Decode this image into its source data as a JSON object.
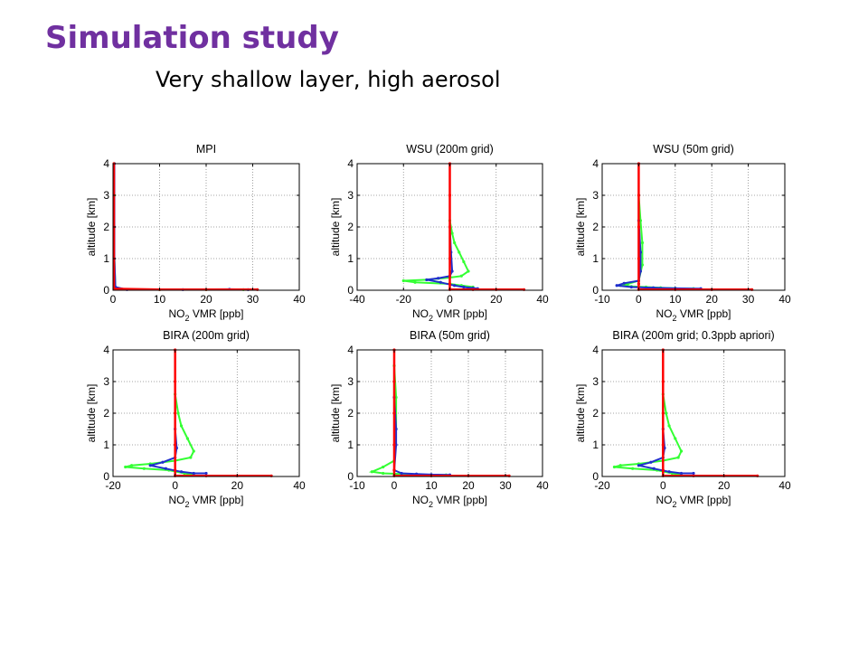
{
  "slide": {
    "title": "Simulation study",
    "subtitle": "Very shallow layer, high aerosol"
  },
  "colors": {
    "title": "#7030a0",
    "red": "#ff0000",
    "green": "#33ff33",
    "blue": "#1f2fcc",
    "grid": "#888888"
  },
  "chart_data": [
    {
      "type": "line",
      "title": "MPI",
      "xlabel": "NO2 VMR [ppb]",
      "ylabel": "altitude [km]",
      "xlim": [
        0,
        40
      ],
      "ylim": [
        0,
        4
      ],
      "xticks": [
        0,
        10,
        20,
        30,
        40
      ],
      "yticks": [
        0,
        1,
        2,
        3,
        4
      ],
      "grid": true,
      "series": [
        {
          "color": "green",
          "x": [
            0.3,
            0.3,
            0.3,
            0.3,
            0.5,
            2,
            10,
            20,
            28
          ],
          "y": [
            4,
            3,
            2,
            1,
            0.1,
            0.03,
            0.02,
            0.02,
            0.02
          ]
        },
        {
          "color": "blue",
          "x": [
            0.3,
            0.3,
            0.3,
            0.5,
            3,
            15,
            25,
            29
          ],
          "y": [
            4,
            2,
            1,
            0.1,
            0.02,
            0.02,
            0.03,
            0.02
          ]
        },
        {
          "color": "red",
          "x": [
            0.2,
            0.2,
            0.2,
            0.2,
            0.2,
            10,
            20,
            31
          ],
          "y": [
            4,
            3,
            2,
            1,
            0.05,
            0.02,
            0.02,
            0.02
          ]
        }
      ]
    },
    {
      "type": "line",
      "title": "WSU (200m grid)",
      "xlabel": "NO2 VMR [ppb]",
      "ylabel": "altitude [km]",
      "xlim": [
        -40,
        40
      ],
      "ylim": [
        0,
        4
      ],
      "xticks": [
        -40,
        -20,
        0,
        20,
        40
      ],
      "yticks": [
        0,
        1,
        2,
        3,
        4
      ],
      "grid": true,
      "series": [
        {
          "color": "green",
          "x": [
            0,
            1,
            2,
            4,
            6,
            8,
            5,
            0,
            -10,
            -20,
            -15,
            0,
            5,
            10,
            8
          ],
          "y": [
            2.2,
            1.8,
            1.5,
            1.2,
            0.9,
            0.6,
            0.45,
            0.4,
            0.33,
            0.3,
            0.25,
            0.2,
            0.15,
            0.1,
            0.05
          ]
        },
        {
          "color": "blue",
          "x": [
            0,
            0.5,
            1,
            0,
            -5,
            -10,
            -4,
            2,
            6,
            10,
            12
          ],
          "y": [
            2,
            1.2,
            0.6,
            0.45,
            0.38,
            0.33,
            0.25,
            0.15,
            0.1,
            0.07,
            0.05
          ]
        },
        {
          "color": "red",
          "x": [
            0,
            0,
            0,
            0,
            0,
            0,
            10,
            20,
            32
          ],
          "y": [
            4,
            3,
            2,
            1,
            0.2,
            0.02,
            0.02,
            0.02,
            0.02
          ]
        }
      ]
    },
    {
      "type": "line",
      "title": "WSU (50m grid)",
      "xlabel": "NO2 VMR [ppb]",
      "ylabel": "altitude [km]",
      "xlim": [
        -10,
        40
      ],
      "ylim": [
        0,
        4
      ],
      "xticks": [
        -10,
        0,
        10,
        20,
        30,
        40
      ],
      "yticks": [
        0,
        1,
        2,
        3,
        4
      ],
      "grid": true,
      "series": [
        {
          "color": "green",
          "x": [
            0,
            0.5,
            1,
            1,
            0,
            -3,
            -5,
            -2,
            2,
            6,
            10,
            15
          ],
          "y": [
            3,
            2.2,
            1.5,
            0.8,
            0.3,
            0.2,
            0.15,
            0.12,
            0.1,
            0.08,
            0.06,
            0.05
          ]
        },
        {
          "color": "blue",
          "x": [
            0,
            0.5,
            0.5,
            0,
            -4,
            -6,
            -2,
            4,
            10,
            17
          ],
          "y": [
            2.2,
            1.2,
            0.6,
            0.3,
            0.22,
            0.15,
            0.1,
            0.08,
            0.06,
            0.05
          ]
        },
        {
          "color": "red",
          "x": [
            0,
            0,
            0,
            0,
            0,
            0,
            10,
            20,
            31
          ],
          "y": [
            4,
            3,
            2,
            1,
            0.2,
            0.02,
            0.02,
            0.02,
            0.02
          ]
        }
      ]
    },
    {
      "type": "line",
      "title": "BIRA (200m grid)",
      "xlabel": "NO2 VMR [ppb]",
      "ylabel": "altitude [km]",
      "xlim": [
        -20,
        40
      ],
      "ylim": [
        0,
        4
      ],
      "xticks": [
        -20,
        0,
        20,
        40
      ],
      "yticks": [
        0,
        1,
        2,
        3,
        4
      ],
      "grid": true,
      "series": [
        {
          "color": "green",
          "x": [
            0,
            1,
            2,
            4,
            6,
            5,
            0,
            -8,
            -14,
            -16,
            -10,
            -2,
            3,
            6
          ],
          "y": [
            2.6,
            2,
            1.6,
            1.2,
            0.8,
            0.6,
            0.5,
            0.4,
            0.35,
            0.3,
            0.25,
            0.2,
            0.1,
            0.05
          ]
        },
        {
          "color": "blue",
          "x": [
            0,
            0.5,
            0,
            -4,
            -8,
            -3,
            2,
            6,
            10
          ],
          "y": [
            1.5,
            0.9,
            0.6,
            0.45,
            0.35,
            0.25,
            0.15,
            0.1,
            0.1
          ]
        },
        {
          "color": "red",
          "x": [
            0,
            0,
            0,
            0,
            0,
            0,
            10,
            20,
            31
          ],
          "y": [
            4,
            3,
            2,
            1,
            0.2,
            0.02,
            0.02,
            0.02,
            0.02
          ]
        }
      ]
    },
    {
      "type": "line",
      "title": "BIRA (50m grid)",
      "xlabel": "NO2 VMR [ppb]",
      "ylabel": "altitude [km]",
      "xlim": [
        -10,
        40
      ],
      "ylim": [
        0,
        4
      ],
      "xticks": [
        -10,
        0,
        10,
        20,
        30,
        40
      ],
      "yticks": [
        0,
        1,
        2,
        3,
        4
      ],
      "grid": true,
      "series": [
        {
          "color": "green",
          "x": [
            0,
            0.5,
            0.5,
            0,
            -3,
            -6,
            -3,
            2,
            6,
            10,
            14
          ],
          "y": [
            3.5,
            2.5,
            1.5,
            0.5,
            0.3,
            0.15,
            0.1,
            0.08,
            0.06,
            0.05,
            0.05
          ]
        },
        {
          "color": "blue",
          "x": [
            0,
            0.5,
            0.5,
            0,
            2,
            6,
            10,
            15
          ],
          "y": [
            2.5,
            1.5,
            1,
            0.2,
            0.1,
            0.08,
            0.06,
            0.05
          ]
        },
        {
          "color": "red",
          "x": [
            0,
            0,
            0,
            0,
            0,
            0,
            10,
            20,
            31
          ],
          "y": [
            4,
            3,
            2,
            1,
            0.2,
            0.02,
            0.02,
            0.02,
            0.02
          ]
        }
      ]
    },
    {
      "type": "line",
      "title": "BIRA (200m grid; 0.3ppb apriori)",
      "xlabel": "NO2 VMR [ppb]",
      "ylabel": "altitude [km]",
      "xlim": [
        -20,
        40
      ],
      "ylim": [
        0,
        4
      ],
      "xticks": [
        -20,
        0,
        20,
        40
      ],
      "yticks": [
        0,
        1,
        2,
        3,
        4
      ],
      "grid": true,
      "series": [
        {
          "color": "green",
          "x": [
            0,
            1,
            2,
            4,
            6,
            5,
            0,
            -8,
            -14,
            -16,
            -10,
            -2,
            3,
            6
          ],
          "y": [
            2.6,
            2,
            1.6,
            1.2,
            0.8,
            0.6,
            0.5,
            0.4,
            0.35,
            0.3,
            0.25,
            0.2,
            0.1,
            0.05
          ]
        },
        {
          "color": "blue",
          "x": [
            0,
            0.5,
            0,
            -4,
            -8,
            -3,
            2,
            6,
            10
          ],
          "y": [
            1.5,
            0.9,
            0.6,
            0.45,
            0.35,
            0.25,
            0.15,
            0.1,
            0.1
          ]
        },
        {
          "color": "red",
          "x": [
            0,
            0,
            0,
            0,
            0,
            0,
            10,
            20,
            31
          ],
          "y": [
            4,
            3,
            2,
            1,
            0.2,
            0.02,
            0.02,
            0.02,
            0.02
          ]
        }
      ]
    }
  ]
}
